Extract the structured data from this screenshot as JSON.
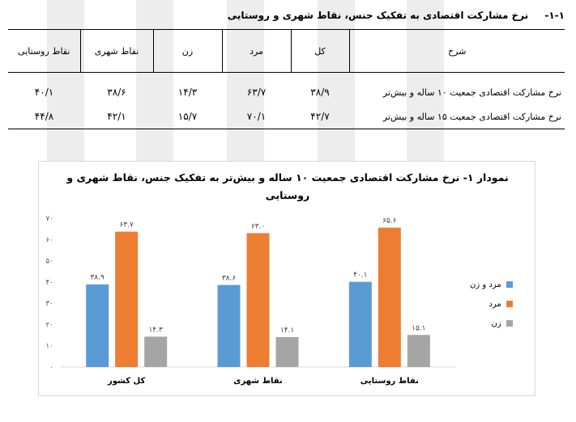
{
  "section": {
    "number": "۱-۱-",
    "title": "نرخ مشارکت اقتصادی به تفکیک جنس، نقاط شهری و روستایی"
  },
  "table": {
    "headers": [
      "شرح",
      "کل",
      "مرد",
      "زن",
      "نقاط شهری",
      "نقاط روستایی"
    ],
    "rows": [
      {
        "desc": "نرخ مشارکت اقتصادی جمعیت ۱۰ ساله و بیش‌تر",
        "values": [
          "۳۸/۹",
          "۶۳/۷",
          "۱۴/۳",
          "۳۸/۶",
          "۴۰/۱"
        ]
      },
      {
        "desc": "نرخ مشارکت اقتصادی جمعیت ۱۵ ساله و بیش‌تر",
        "values": [
          "۴۲/۷",
          "۷۰/۱",
          "۱۵/۷",
          "۴۲/۱",
          "۴۴/۸"
        ]
      }
    ]
  },
  "chart_data": {
    "type": "bar",
    "title_line1": "نمودار ۱- نرخ مشارکت اقتصادی جمعیت ۱۰ ساله و بیش‌تر به تفکیک جنس، نقاط شهری و",
    "title_line2": "روستایی",
    "categories": [
      "کل کشور",
      "نقاط شهری",
      "نقاط روستایی"
    ],
    "series": [
      {
        "name": "مرد و زن",
        "color": "#5b9bd5",
        "values": [
          38.9,
          38.6,
          40.1
        ],
        "labels": [
          "۳۸.۹",
          "۳۸.۶",
          "۴۰.۱"
        ]
      },
      {
        "name": "مرد",
        "color": "#ed7d31",
        "values": [
          63.7,
          63.0,
          65.6
        ],
        "labels": [
          "۶۳.۷",
          "۶۳.۰",
          "۶۵.۶"
        ]
      },
      {
        "name": "زن",
        "color": "#a5a5a5",
        "values": [
          14.3,
          14.1,
          15.1
        ],
        "labels": [
          "۱۴.۳",
          "۱۴.۱",
          "۱۵.۱"
        ]
      }
    ],
    "ylim": [
      0,
      70
    ],
    "yticks": [
      0,
      10,
      20,
      30,
      40,
      50,
      60,
      70
    ],
    "ytick_labels": [
      "۰",
      "۱۰",
      "۲۰",
      "۳۰",
      "۴۰",
      "۵۰",
      "۶۰",
      "۷۰"
    ],
    "grid": false,
    "legend_position": "right"
  }
}
